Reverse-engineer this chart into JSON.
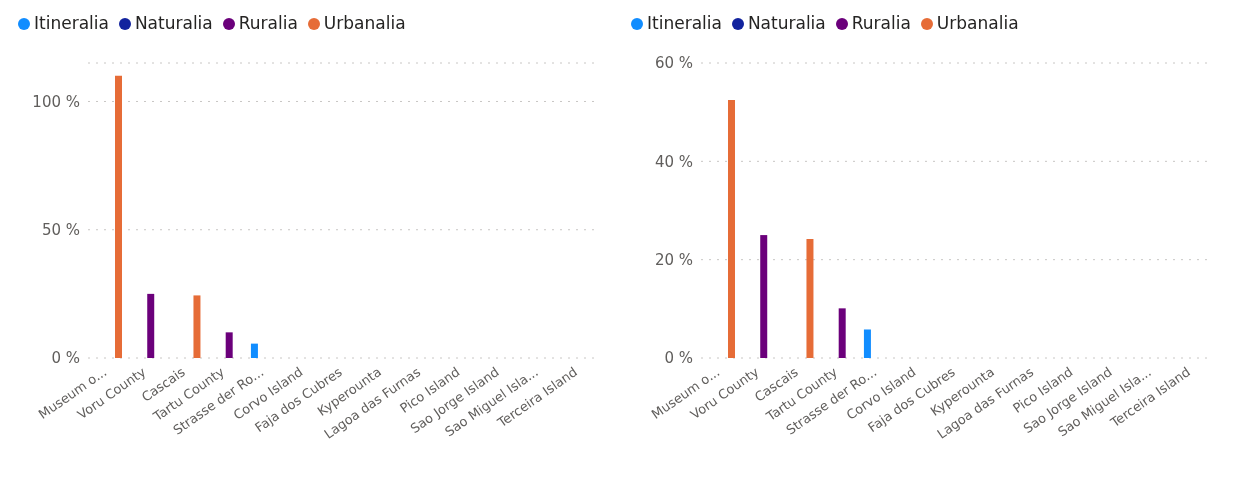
{
  "chart_data": [
    {
      "type": "bar",
      "categories": [
        "Museum o...",
        "Voru County",
        "Cascais",
        "Tartu County",
        "Strasse der Ro...",
        "Corvo Island",
        "Faja dos Cubres",
        "Kyperounta",
        "Lagoa das Furnas",
        "Pico Island",
        "Sao Jorge Island",
        "Sao Miguel Isla...",
        "Terceira Island"
      ],
      "series": [
        {
          "name": "Itineralia",
          "color": "#118dff",
          "values": [
            null,
            null,
            null,
            null,
            5.6,
            null,
            null,
            null,
            null,
            null,
            null,
            null,
            null
          ]
        },
        {
          "name": "Naturalia",
          "color": "#12239e",
          "values": [
            null,
            null,
            null,
            null,
            null,
            null,
            null,
            null,
            null,
            null,
            null,
            null,
            null
          ]
        },
        {
          "name": "Ruralia",
          "color": "#6b007b",
          "values": [
            null,
            25,
            null,
            10,
            null,
            null,
            null,
            null,
            null,
            null,
            null,
            null,
            null
          ]
        },
        {
          "name": "Urbanalia",
          "color": "#e66c37",
          "values": [
            110,
            null,
            24.4,
            null,
            null,
            null,
            null,
            null,
            null,
            null,
            null,
            null,
            null
          ]
        }
      ],
      "ylim": [
        0,
        115
      ],
      "yticks": [
        {
          "value": 0,
          "label": "0 %"
        },
        {
          "value": 50,
          "label": "50 %"
        },
        {
          "value": 100,
          "label": "100 %"
        }
      ],
      "grid": "y",
      "legend": "top left"
    },
    {
      "type": "bar",
      "categories": [
        "Museum o...",
        "Voru County",
        "Cascais",
        "Tartu County",
        "Strasse der Ro...",
        "Corvo Island",
        "Faja dos Cubres",
        "Kyperounta",
        "Lagoa das Furnas",
        "Pico Island",
        "Sao Jorge Island",
        "Sao Miguel Isla...",
        "Terceira Island"
      ],
      "series": [
        {
          "name": "Itineralia",
          "color": "#118dff",
          "values": [
            null,
            null,
            null,
            null,
            5.8,
            null,
            null,
            null,
            null,
            null,
            null,
            null,
            null
          ]
        },
        {
          "name": "Naturalia",
          "color": "#12239e",
          "values": [
            null,
            null,
            null,
            null,
            null,
            null,
            null,
            null,
            null,
            null,
            null,
            null,
            null
          ]
        },
        {
          "name": "Ruralia",
          "color": "#6b007b",
          "values": [
            null,
            25,
            null,
            10.1,
            null,
            null,
            null,
            null,
            null,
            null,
            null,
            null,
            null
          ]
        },
        {
          "name": "Urbanalia",
          "color": "#e66c37",
          "values": [
            52.5,
            null,
            24.2,
            null,
            null,
            null,
            null,
            null,
            null,
            null,
            null,
            null,
            null
          ]
        }
      ],
      "ylim": [
        0,
        60
      ],
      "yticks": [
        {
          "value": 0,
          "label": "0 %"
        },
        {
          "value": 20,
          "label": "20 %"
        },
        {
          "value": 40,
          "label": "40 %"
        },
        {
          "value": 60,
          "label": "60 %"
        }
      ],
      "grid": "y",
      "legend": "top left"
    }
  ]
}
